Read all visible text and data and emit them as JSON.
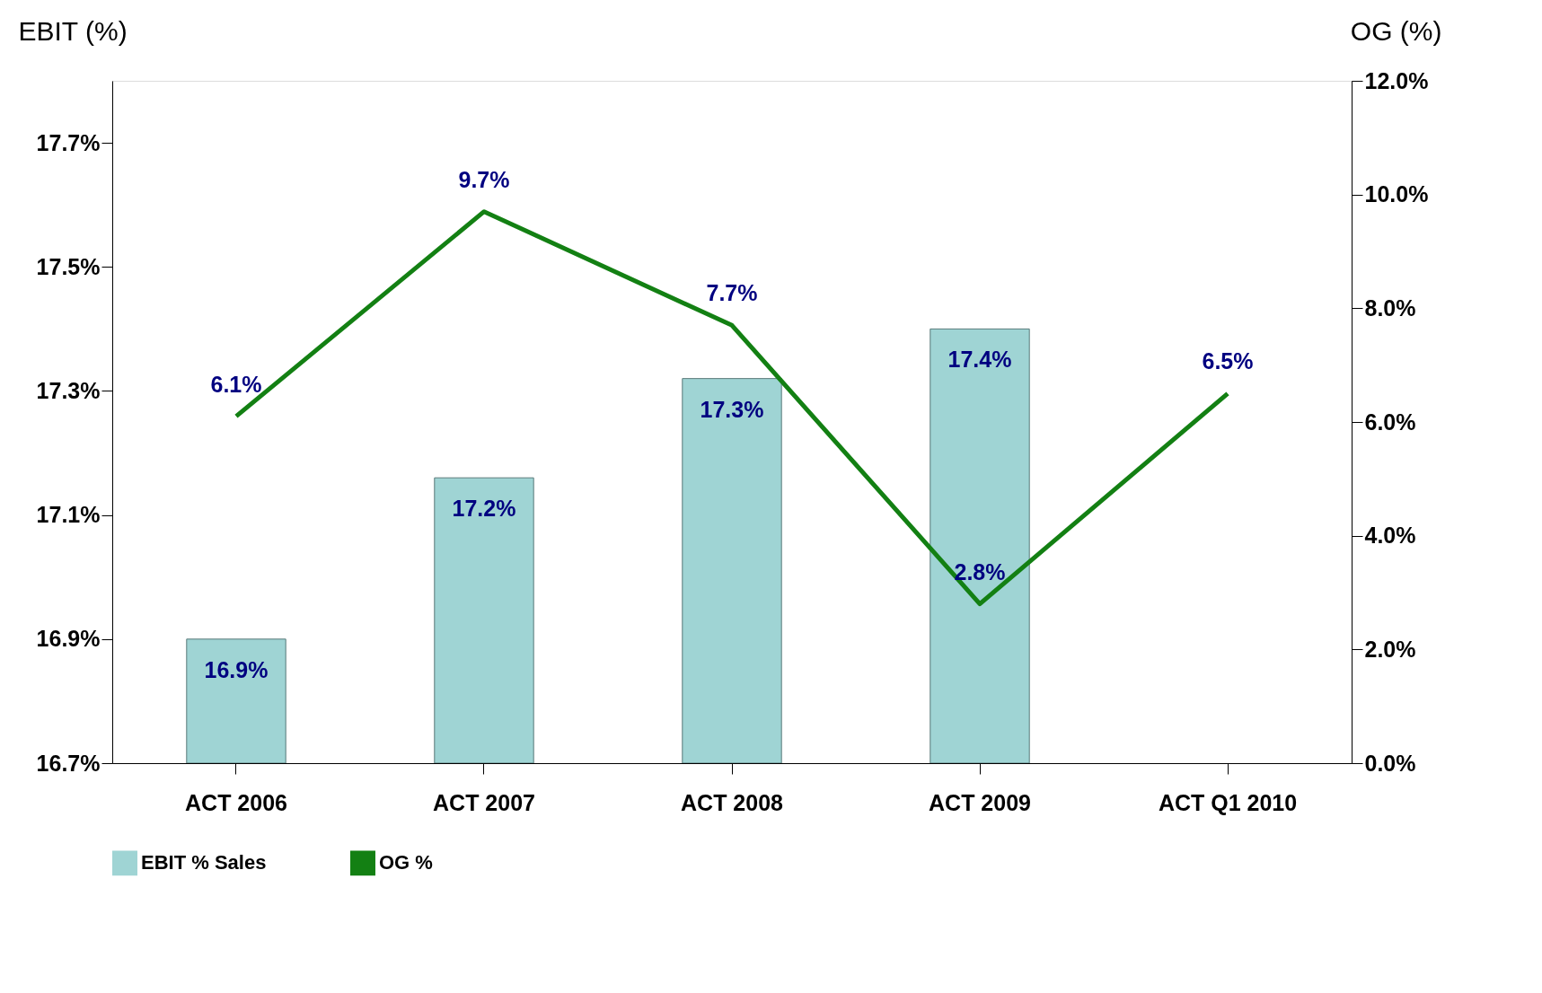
{
  "chart_data": {
    "type": "bar",
    "categories": [
      "ACT 2006",
      "ACT 2007",
      "ACT 2008",
      "ACT 2009",
      "ACT Q1 2010"
    ],
    "ylabel": "EBIT (%)",
    "y2label": "OG (%)",
    "ylim": [
      16.7,
      17.8
    ],
    "yticks": [
      {
        "value": 16.7,
        "label": "16.7%"
      },
      {
        "value": 16.9,
        "label": "16.9%"
      },
      {
        "value": 17.1,
        "label": "17.1%"
      },
      {
        "value": 17.3,
        "label": "17.3%"
      },
      {
        "value": 17.5,
        "label": "17.5%"
      },
      {
        "value": 17.7,
        "label": "17.7%"
      }
    ],
    "y2lim": [
      0,
      12
    ],
    "y2ticks": [
      {
        "value": 0,
        "label": "0.0%"
      },
      {
        "value": 2,
        "label": "2.0%"
      },
      {
        "value": 4,
        "label": "4.0%"
      },
      {
        "value": 6,
        "label": "6.0%"
      },
      {
        "value": 8,
        "label": "8.0%"
      },
      {
        "value": 10,
        "label": "10.0%"
      },
      {
        "value": 12,
        "label": "12.0%"
      }
    ],
    "series": [
      {
        "name": "EBIT % Sales",
        "color": "#9fd4d4",
        "values": [
          16.9,
          17.16,
          17.32,
          17.4,
          null
        ],
        "value_labels": [
          "16.9%",
          "17.2%",
          "17.3%",
          "17.4%",
          null
        ]
      },
      {
        "name": "OG %",
        "type": "line",
        "axis": "y2",
        "color": "#138013",
        "values": [
          6.1,
          9.7,
          7.7,
          2.8,
          6.5
        ],
        "value_labels": [
          "6.1%",
          "9.7%",
          "7.7%",
          "2.8%",
          "6.5%"
        ]
      }
    ],
    "grid": false,
    "legend": "bottom"
  }
}
